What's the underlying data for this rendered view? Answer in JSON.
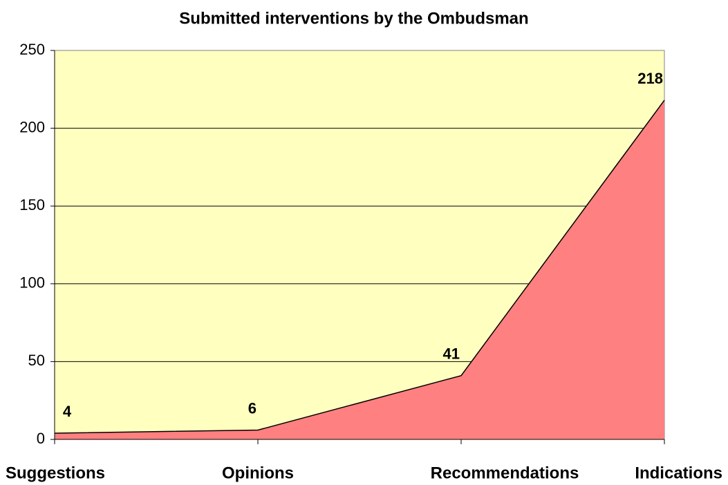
{
  "chart_data": {
    "type": "area",
    "title": "Submitted interventions by the Ombudsman",
    "categories": [
      "Suggestions",
      "Opinions",
      "Recommendations",
      "Indications"
    ],
    "values": [
      4,
      6,
      41,
      218
    ],
    "color": "#ff8080",
    "background": "#ffffc0",
    "ylim": [
      0,
      250
    ],
    "yticks": [
      0,
      50,
      100,
      150,
      200,
      250
    ],
    "grid": true
  }
}
